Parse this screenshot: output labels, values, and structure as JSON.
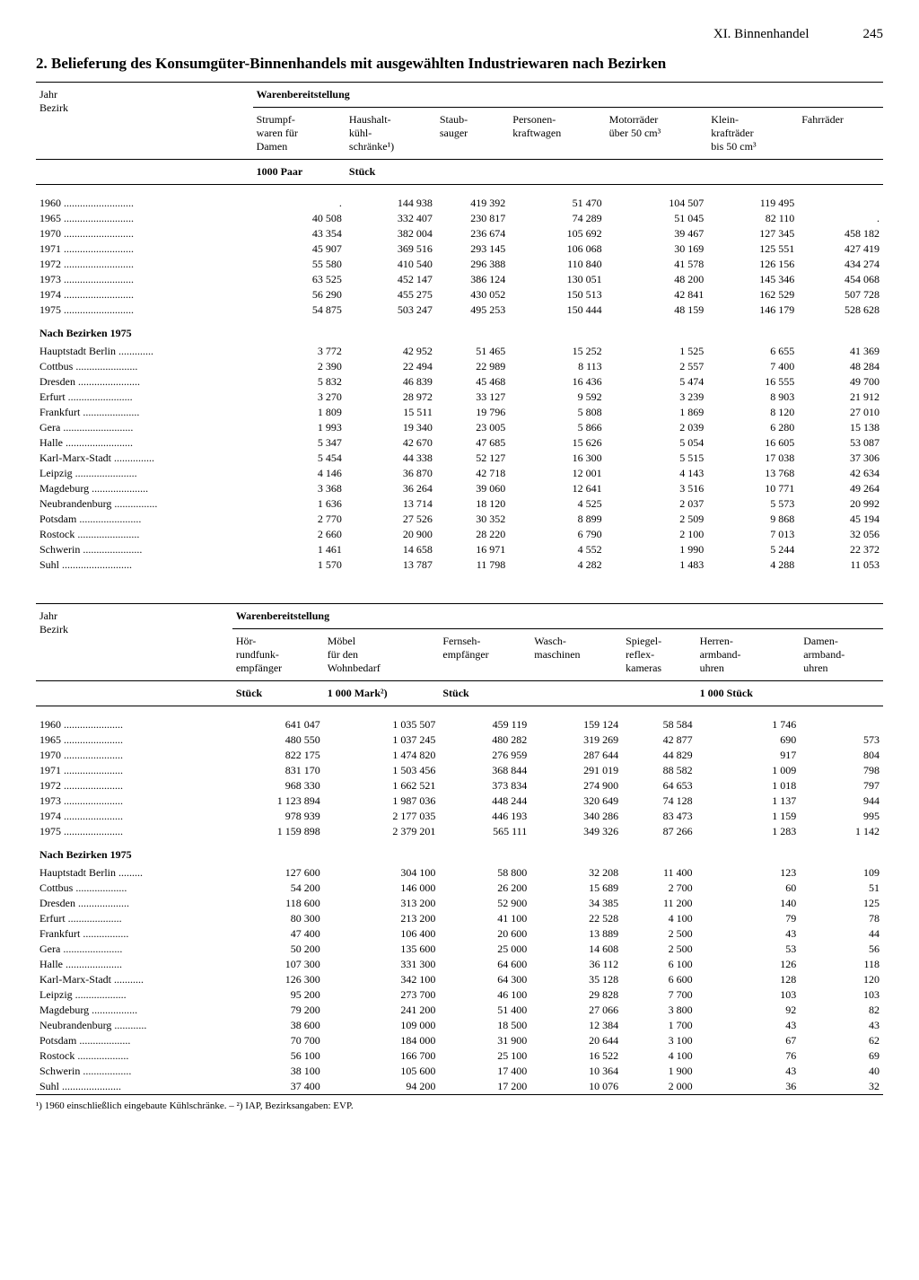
{
  "header": {
    "chapter": "XI. Binnenhandel",
    "page": "245"
  },
  "title": "2. Belieferung des Konsumgüter-Binnenhandels mit ausgewählten Industriewaren nach Bezirken",
  "row_header_label_1": "Jahr",
  "row_header_label_2": "Bezirk",
  "group_header": "Warenbereitstellung",
  "section_label": "Nach Bezirken 1975",
  "footnote": "¹) 1960 einschließlich eingebaute Kühlschränke. – ²) IAP, Bezirksangaben: EVP.",
  "table1": {
    "columns": [
      "Strumpf-\nwaren für\nDamen",
      "Haushalt-\nkühl-\nschränke¹)",
      "Staub-\nsauger",
      "Personen-\nkraftwagen",
      "Motorräder\nüber 50 cm³",
      "Klein-\nkrafträder\nbis 50 cm³",
      "Fahrräder"
    ],
    "units": [
      "1000 Paar",
      "Stück",
      "",
      "",
      "",
      "",
      ""
    ],
    "years_labels": [
      "1960",
      "1965",
      "1970",
      "1971",
      "1972",
      "1973",
      "1974",
      "1975"
    ],
    "years": [
      [
        ".",
        "144 938",
        "419 392",
        "51 470",
        "104 507",
        "119 495",
        ""
      ],
      [
        "40 508",
        "332 407",
        "230 817",
        "74 289",
        "51 045",
        "82 110",
        "."
      ],
      [
        "43 354",
        "382 004",
        "236 674",
        "105 692",
        "39 467",
        "127 345",
        "458 182"
      ],
      [
        "45 907",
        "369 516",
        "293 145",
        "106 068",
        "30 169",
        "125 551",
        "427 419"
      ],
      [
        "55 580",
        "410 540",
        "296 388",
        "110 840",
        "41 578",
        "126 156",
        "434 274"
      ],
      [
        "63 525",
        "452 147",
        "386 124",
        "130 051",
        "48 200",
        "145 346",
        "454 068"
      ],
      [
        "56 290",
        "455 275",
        "430 052",
        "150 513",
        "42 841",
        "162 529",
        "507 728"
      ],
      [
        "54 875",
        "503 247",
        "495 253",
        "150 444",
        "48 159",
        "146 179",
        "528 628"
      ]
    ],
    "bezirke_labels": [
      "Hauptstadt Berlin",
      "Cottbus",
      "Dresden",
      "Erfurt",
      "Frankfurt",
      "Gera",
      "Halle",
      "Karl-Marx-Stadt",
      "Leipzig",
      "Magdeburg",
      "Neubrandenburg",
      "Potsdam",
      "Rostock",
      "Schwerin",
      "Suhl"
    ],
    "bezirke": [
      [
        "3 772",
        "42 952",
        "51 465",
        "15 252",
        "1 525",
        "6 655",
        "41 369"
      ],
      [
        "2 390",
        "22 494",
        "22 989",
        "8 113",
        "2 557",
        "7 400",
        "48 284"
      ],
      [
        "5 832",
        "46 839",
        "45 468",
        "16 436",
        "5 474",
        "16 555",
        "49 700"
      ],
      [
        "3 270",
        "28 972",
        "33 127",
        "9 592",
        "3 239",
        "8 903",
        "21 912"
      ],
      [
        "1 809",
        "15 511",
        "19 796",
        "5 808",
        "1 869",
        "8 120",
        "27 010"
      ],
      [
        "1 993",
        "19 340",
        "23 005",
        "5 866",
        "2 039",
        "6 280",
        "15 138"
      ],
      [
        "5 347",
        "42 670",
        "47 685",
        "15 626",
        "5 054",
        "16 605",
        "53 087"
      ],
      [
        "5 454",
        "44 338",
        "52 127",
        "16 300",
        "5 515",
        "17 038",
        "37 306"
      ],
      [
        "4 146",
        "36 870",
        "42 718",
        "12 001",
        "4 143",
        "13 768",
        "42 634"
      ],
      [
        "3 368",
        "36 264",
        "39 060",
        "12 641",
        "3 516",
        "10 771",
        "49 264"
      ],
      [
        "1 636",
        "13 714",
        "18 120",
        "4 525",
        "2 037",
        "5 573",
        "20 992"
      ],
      [
        "2 770",
        "27 526",
        "30 352",
        "8 899",
        "2 509",
        "9 868",
        "45 194"
      ],
      [
        "2 660",
        "20 900",
        "28 220",
        "6 790",
        "2 100",
        "7 013",
        "32 056"
      ],
      [
        "1 461",
        "14 658",
        "16 971",
        "4 552",
        "1 990",
        "5 244",
        "22 372"
      ],
      [
        "1 570",
        "13 787",
        "11 798",
        "4 282",
        "1 483",
        "4 288",
        "11 053"
      ]
    ]
  },
  "table2": {
    "columns": [
      "Hör-\nrundfunk-\nempfänger",
      "Möbel\nfür den\nWohnbedarf",
      "Fernseh-\nempfänger",
      "Wasch-\nmaschinen",
      "Spiegel-\nreflex-\nkameras",
      "Herren-\narmband-\nuhren",
      "Damen-\narmband-\nuhren"
    ],
    "units": [
      "Stück",
      "1 000 Mark²)",
      "Stück",
      "",
      "",
      "1 000 Stück",
      ""
    ],
    "years_labels": [
      "1960",
      "1965",
      "1970",
      "1971",
      "1972",
      "1973",
      "1974",
      "1975"
    ],
    "years": [
      [
        "641 047",
        "1 035 507",
        "459 119",
        "159 124",
        "58 584",
        "1 746",
        ""
      ],
      [
        "480 550",
        "1 037 245",
        "480 282",
        "319 269",
        "42 877",
        "690",
        "573"
      ],
      [
        "822 175",
        "1 474 820",
        "276 959",
        "287 644",
        "44 829",
        "917",
        "804"
      ],
      [
        "831 170",
        "1 503 456",
        "368 844",
        "291 019",
        "88 582",
        "1 009",
        "798"
      ],
      [
        "968 330",
        "1 662 521",
        "373 834",
        "274 900",
        "64 653",
        "1 018",
        "797"
      ],
      [
        "1 123 894",
        "1 987 036",
        "448 244",
        "320 649",
        "74 128",
        "1 137",
        "944"
      ],
      [
        "978 939",
        "2 177 035",
        "446 193",
        "340 286",
        "83 473",
        "1 159",
        "995"
      ],
      [
        "1 159 898",
        "2 379 201",
        "565 111",
        "349 326",
        "87 266",
        "1 283",
        "1 142"
      ]
    ],
    "bezirke_labels": [
      "Hauptstadt Berlin",
      "Cottbus",
      "Dresden",
      "Erfurt",
      "Frankfurt",
      "Gera",
      "Halle",
      "Karl-Marx-Stadt",
      "Leipzig",
      "Magdeburg",
      "Neubrandenburg",
      "Potsdam",
      "Rostock",
      "Schwerin",
      "Suhl"
    ],
    "bezirke": [
      [
        "127 600",
        "304 100",
        "58 800",
        "32 208",
        "11 400",
        "123",
        "109"
      ],
      [
        "54 200",
        "146 000",
        "26 200",
        "15 689",
        "2 700",
        "60",
        "51"
      ],
      [
        "118 600",
        "313 200",
        "52 900",
        "34 385",
        "11 200",
        "140",
        "125"
      ],
      [
        "80 300",
        "213 200",
        "41 100",
        "22 528",
        "4 100",
        "79",
        "78"
      ],
      [
        "47 400",
        "106 400",
        "20 600",
        "13 889",
        "2 500",
        "43",
        "44"
      ],
      [
        "50 200",
        "135 600",
        "25 000",
        "14 608",
        "2 500",
        "53",
        "56"
      ],
      [
        "107 300",
        "331 300",
        "64 600",
        "36 112",
        "6 100",
        "126",
        "118"
      ],
      [
        "126 300",
        "342 100",
        "64 300",
        "35 128",
        "6 600",
        "128",
        "120"
      ],
      [
        "95 200",
        "273 700",
        "46 100",
        "29 828",
        "7 700",
        "103",
        "103"
      ],
      [
        "79 200",
        "241 200",
        "51 400",
        "27 066",
        "3 800",
        "92",
        "82"
      ],
      [
        "38 600",
        "109 000",
        "18 500",
        "12 384",
        "1 700",
        "43",
        "43"
      ],
      [
        "70 700",
        "184 000",
        "31 900",
        "20 644",
        "3 100",
        "67",
        "62"
      ],
      [
        "56 100",
        "166 700",
        "25 100",
        "16 522",
        "4 100",
        "76",
        "69"
      ],
      [
        "38 100",
        "105 600",
        "17 400",
        "10 364",
        "1 900",
        "43",
        "40"
      ],
      [
        "37 400",
        "94 200",
        "17 200",
        "10 076",
        "2 000",
        "36",
        "32"
      ]
    ]
  }
}
